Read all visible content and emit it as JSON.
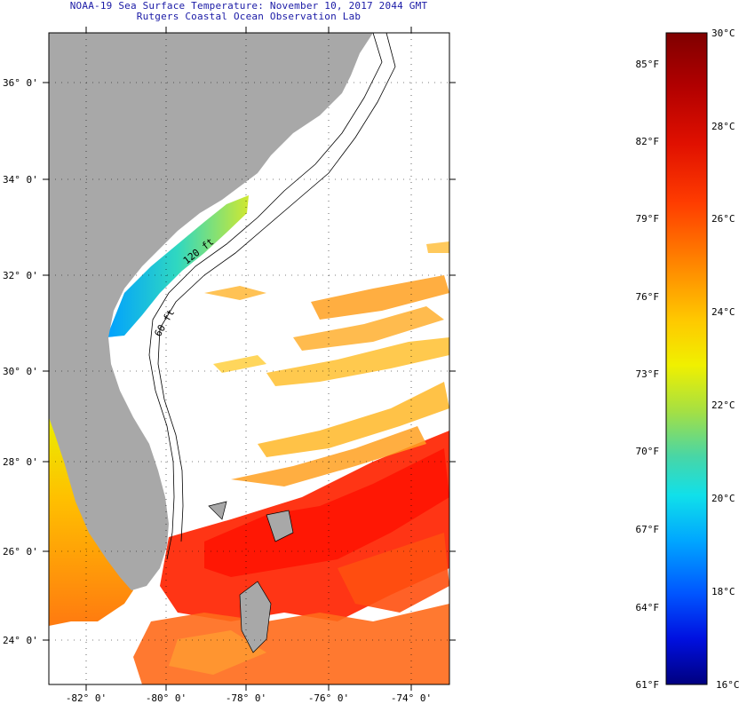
{
  "header": {
    "title_line1": "NOAA-19 Sea Surface Temperature:  November 10, 2017 2044 GMT",
    "title_line2": "Rutgers Coastal Ocean Observation Lab"
  },
  "map": {
    "lat_labels": [
      "36° 0'",
      "34° 0'",
      "32° 0'",
      "30° 0'",
      "28° 0'",
      "26° 0'",
      "24° 0'"
    ],
    "lon_labels": [
      "-82° 0'",
      "-80° 0'",
      "-78° 0'",
      "-76° 0'",
      "-74° 0'"
    ],
    "contour_labels": [
      "120 ft",
      "60 ft"
    ],
    "land_color": "#a8a8a8"
  },
  "colorbar": {
    "fahrenheit_labels": [
      "85°F",
      "82°F",
      "79°F",
      "76°F",
      "73°F",
      "70°F",
      "67°F",
      "64°F",
      "61°F"
    ],
    "celsius_labels": [
      "30°C",
      "28°C",
      "26°C",
      "24°C",
      "22°C",
      "20°C",
      "18°C",
      "16°C"
    ],
    "colors": [
      "#7f0000",
      "#d00000",
      "#ff3000",
      "#ff8000",
      "#ffc000",
      "#ffff00",
      "#a0e040",
      "#40d8b0",
      "#00e0ff",
      "#00a0ff",
      "#0050ff",
      "#0000e0",
      "#00007f"
    ]
  }
}
